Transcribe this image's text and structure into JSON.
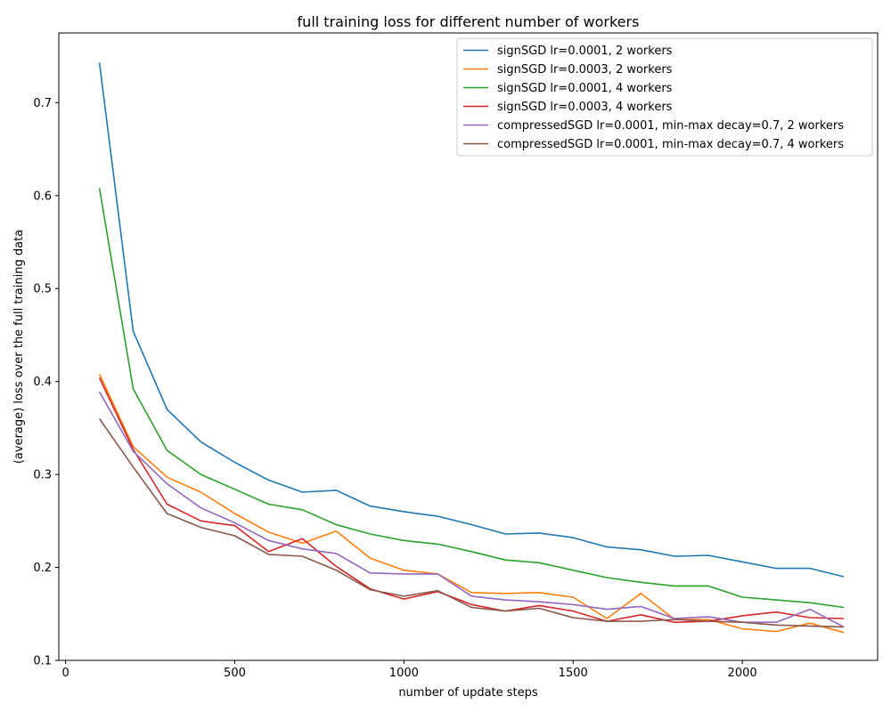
{
  "chart_data": {
    "type": "line",
    "title": "full training loss for different number of workers",
    "xlabel": "number of update steps",
    "ylabel": "(average) loss over the full training data",
    "xlim": [
      -20,
      2400
    ],
    "ylim": [
      0.1,
      0.775
    ],
    "xticks": [
      0,
      500,
      1000,
      1500,
      2000
    ],
    "xtick_labels": [
      "0",
      "500",
      "1000",
      "1500",
      "2000"
    ],
    "yticks": [
      0.1,
      0.2,
      0.3,
      0.4,
      0.5,
      0.6,
      0.7
    ],
    "ytick_labels": [
      "0.1",
      "0.2",
      "0.3",
      "0.4",
      "0.5",
      "0.6",
      "0.7"
    ],
    "grid": false,
    "legend_position": "top-right",
    "x": [
      100,
      200,
      300,
      400,
      500,
      600,
      700,
      800,
      900,
      1000,
      1100,
      1200,
      1300,
      1400,
      1500,
      1600,
      1700,
      1800,
      1900,
      2000,
      2100,
      2200,
      2300
    ],
    "series": [
      {
        "name": "signSGD lr=0.0001, 2 workers",
        "color": "#1f77b4",
        "values": [
          0.743,
          0.454,
          0.37,
          0.335,
          0.313,
          0.294,
          0.281,
          0.283,
          0.266,
          0.26,
          0.255,
          0.246,
          0.236,
          0.237,
          0.232,
          0.222,
          0.219,
          0.212,
          0.213,
          0.206,
          0.199,
          0.199,
          0.19
        ]
      },
      {
        "name": "signSGD lr=0.0003, 2 workers",
        "color": "#ff7f0e",
        "values": [
          0.408,
          0.33,
          0.297,
          0.281,
          0.258,
          0.238,
          0.226,
          0.239,
          0.21,
          0.197,
          0.193,
          0.173,
          0.172,
          0.173,
          0.168,
          0.145,
          0.172,
          0.144,
          0.144,
          0.134,
          0.131,
          0.14,
          0.13
        ]
      },
      {
        "name": "signSGD lr=0.0001, 4 workers",
        "color": "#2ca02c",
        "values": [
          0.608,
          0.392,
          0.326,
          0.3,
          0.284,
          0.268,
          0.262,
          0.246,
          0.236,
          0.229,
          0.225,
          0.217,
          0.208,
          0.205,
          0.197,
          0.189,
          0.184,
          0.18,
          0.18,
          0.168,
          0.165,
          0.162,
          0.157
        ]
      },
      {
        "name": "signSGD lr=0.0003, 4 workers",
        "color": "#d62728",
        "values": [
          0.404,
          0.327,
          0.268,
          0.25,
          0.245,
          0.217,
          0.231,
          0.201,
          0.177,
          0.166,
          0.174,
          0.16,
          0.153,
          0.159,
          0.153,
          0.142,
          0.149,
          0.141,
          0.142,
          0.148,
          0.152,
          0.146,
          0.145
        ]
      },
      {
        "name": "compressedSGD lr=0.0001, min-max decay=0.7, 2 workers",
        "color": "#9467bd",
        "values": [
          0.389,
          0.325,
          0.29,
          0.264,
          0.248,
          0.229,
          0.22,
          0.215,
          0.194,
          0.193,
          0.193,
          0.169,
          0.165,
          0.163,
          0.16,
          0.155,
          0.158,
          0.145,
          0.147,
          0.141,
          0.141,
          0.155,
          0.136
        ]
      },
      {
        "name": "compressedSGD lr=0.0001, min-max decay=0.7, 4 workers",
        "color": "#8c564b",
        "values": [
          0.36,
          0.308,
          0.258,
          0.243,
          0.234,
          0.214,
          0.212,
          0.197,
          0.176,
          0.169,
          0.175,
          0.157,
          0.153,
          0.156,
          0.146,
          0.142,
          0.142,
          0.144,
          0.142,
          0.141,
          0.138,
          0.137,
          0.136
        ]
      }
    ]
  }
}
